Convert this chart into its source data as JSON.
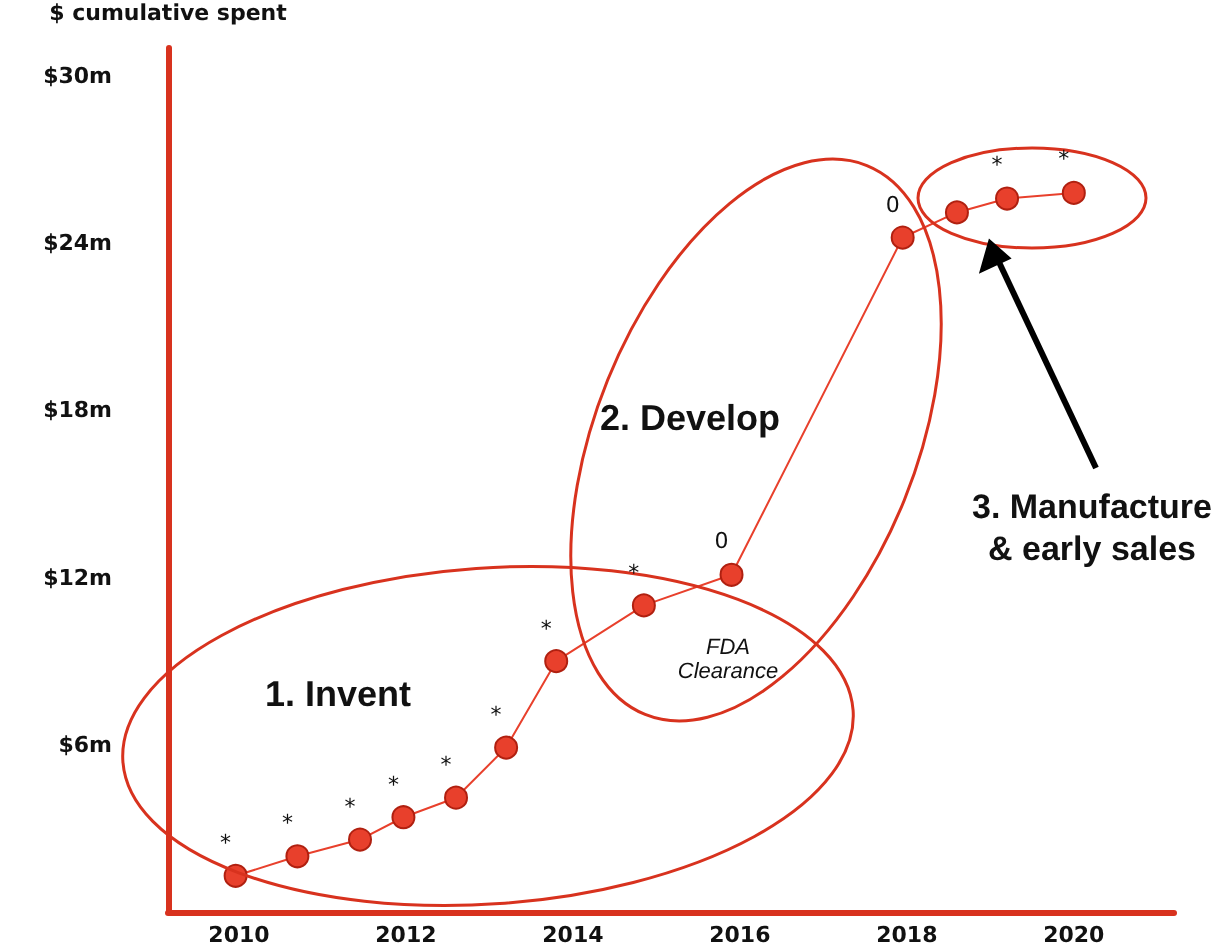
{
  "chart_data": {
    "type": "line",
    "ylabel": "$ cumulative spent",
    "x": [
      2009.96,
      2010.7,
      2011.45,
      2011.97,
      2012.6,
      2013.2,
      2013.8,
      2014.85,
      2015.9,
      2017.95,
      2018.6,
      2019.2,
      2020.0
    ],
    "series": [
      {
        "color": "#e8402c",
        "values": [
          1.3,
          2.0,
          2.6,
          3.4,
          4.1,
          5.9,
          9.0,
          11.0,
          12.1,
          24.2,
          25.1,
          25.6,
          25.8
        ]
      }
    ],
    "xlim": [
      2009.15,
      2021.2
    ],
    "xticks": [
      2010,
      2012,
      2014,
      2016,
      2018,
      2020
    ],
    "ylim": [
      0,
      31
    ],
    "yticks": [
      {
        "value": 6,
        "label": "$6m"
      },
      {
        "value": 12,
        "label": "$12m"
      },
      {
        "value": 18,
        "label": "$18m"
      },
      {
        "value": 24,
        "label": "$24m"
      },
      {
        "value": 30,
        "label": "$30m"
      }
    ],
    "marker": "circle",
    "line_style": "solid",
    "annotations": [
      "1. Invent",
      "2. Develop",
      "FDA Clearance",
      "3. Manufacture & early sales",
      {
        "text": "*",
        "x": 2009.96,
        "y": 1.3
      },
      {
        "text": "*",
        "x": 2010.7,
        "y": 2.0
      },
      {
        "text": "*",
        "x": 2011.45,
        "y": 2.6
      },
      {
        "text": "*",
        "x": 2011.97,
        "y": 3.4
      },
      {
        "text": "*",
        "x": 2012.6,
        "y": 4.1
      },
      {
        "text": "*",
        "x": 2013.2,
        "y": 5.9
      },
      {
        "text": "*",
        "x": 2013.8,
        "y": 9.0
      },
      {
        "text": "*",
        "x": 2014.85,
        "y": 11.0
      },
      {
        "text": "0",
        "x": 2015.9,
        "y": 12.1
      },
      {
        "text": "0",
        "x": 2017.95,
        "y": 24.2
      },
      {
        "text": "*",
        "x": 2019.2,
        "y": 25.6
      },
      {
        "text": "*",
        "x": 2020.0,
        "y": 25.8
      }
    ]
  }
}
